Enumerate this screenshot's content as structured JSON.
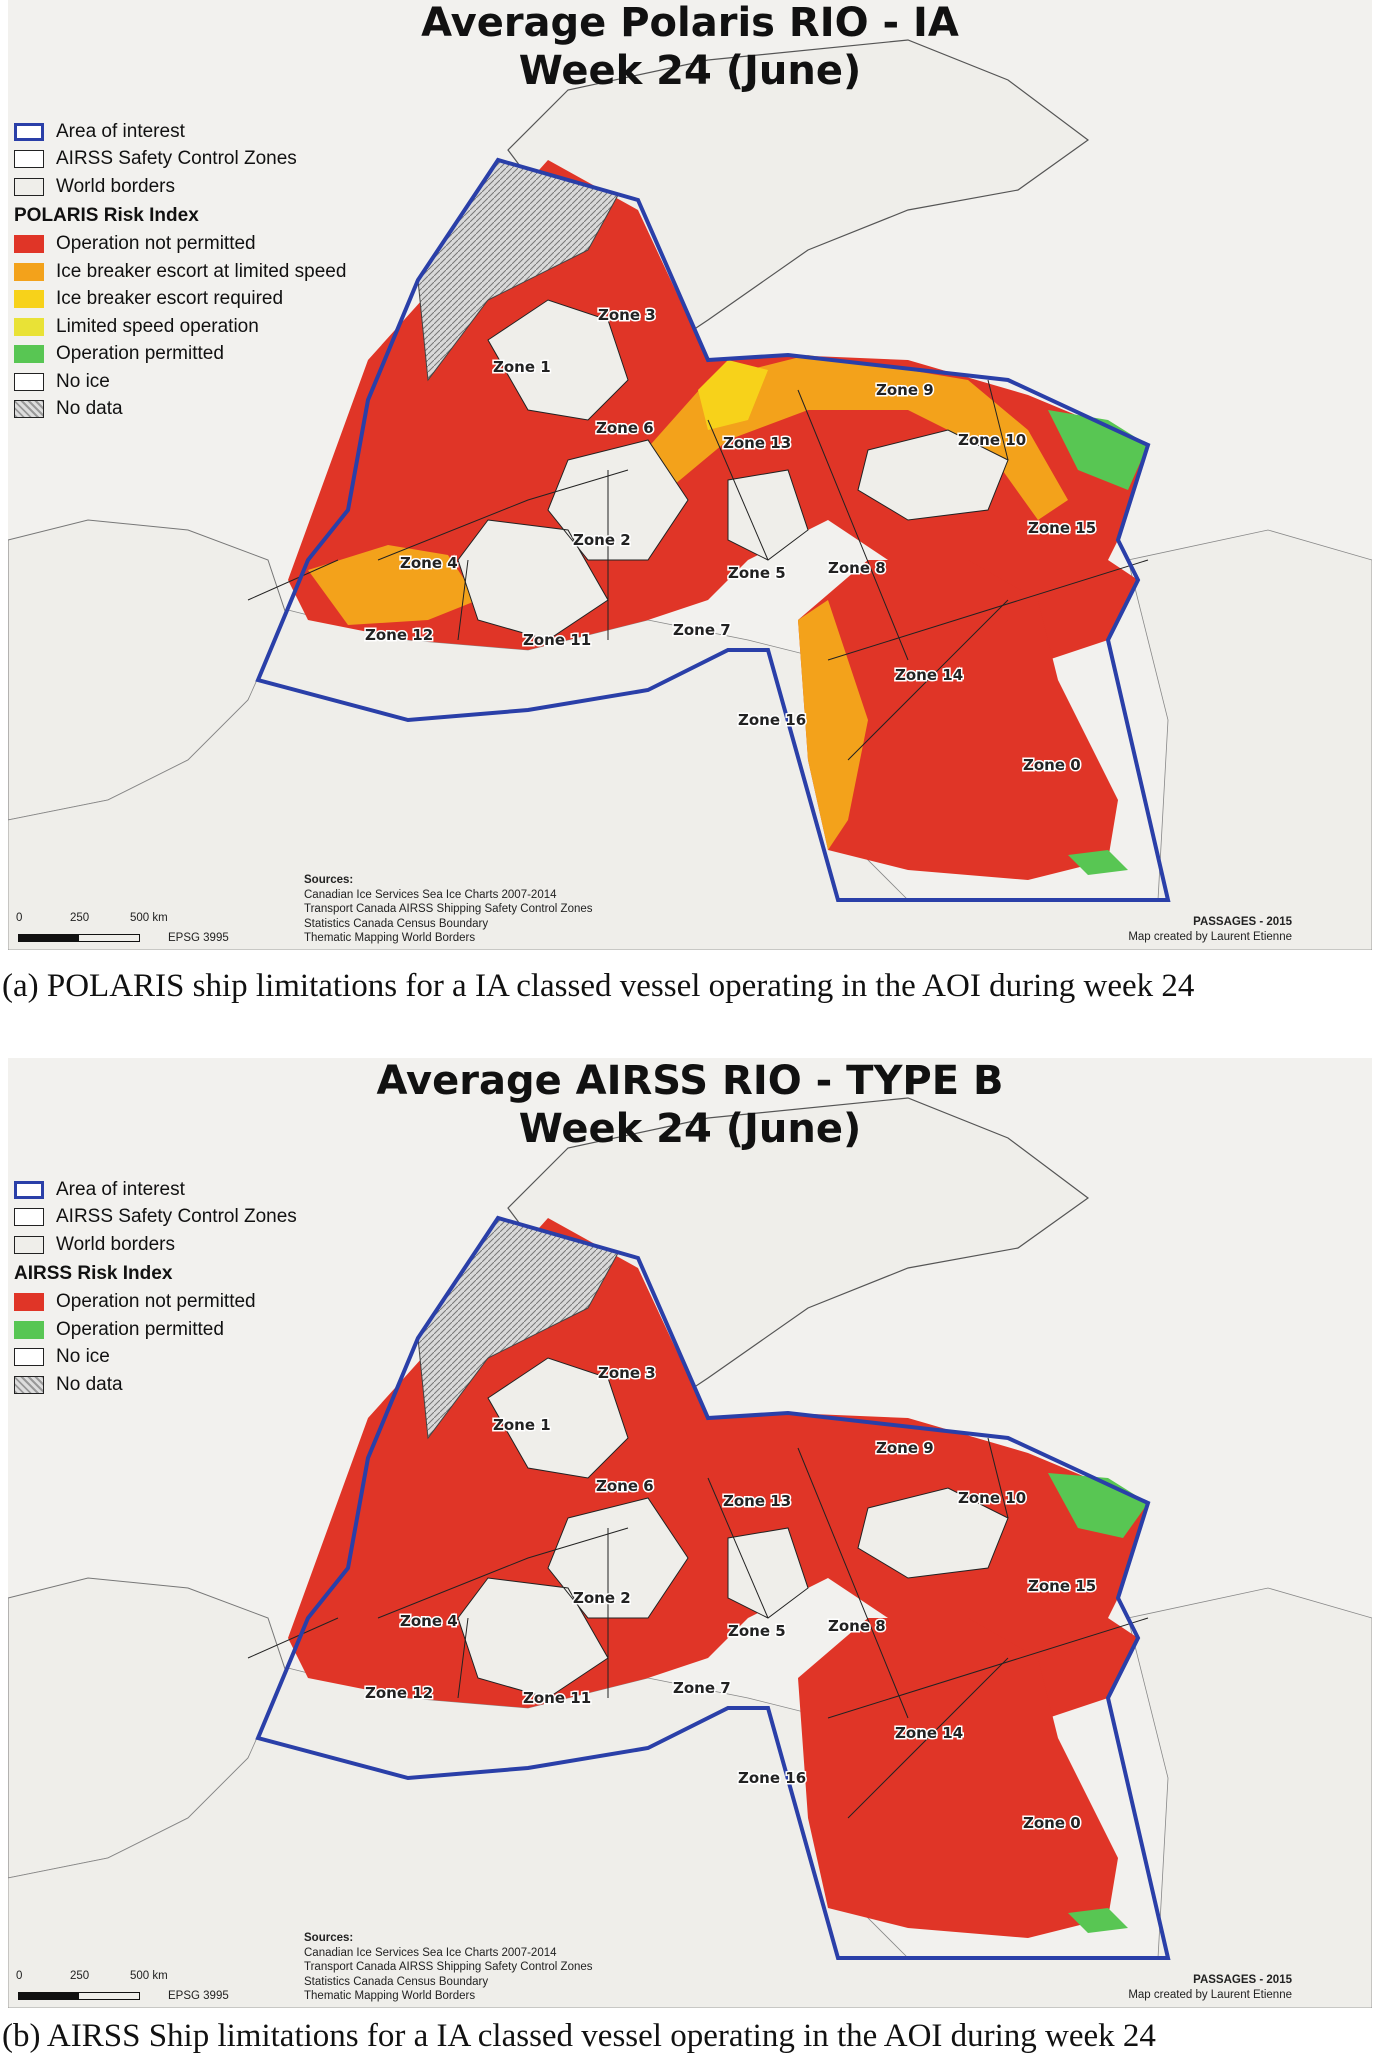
{
  "colors": {
    "aoi_border": "#2a3fa8",
    "not_permitted": "#e03527",
    "ie_limited_speed": "#f3a21b",
    "ie_required": "#f7d21a",
    "limited_speed": "#e9e236",
    "permitted": "#58c653",
    "no_ice": "#ffffff",
    "land": "#efeeea",
    "no_data": "#b8b8b8"
  },
  "zone_labels": [
    "Zone 0",
    "Zone 1",
    "Zone 2",
    "Zone 3",
    "Zone 4",
    "Zone 5",
    "Zone 6",
    "Zone 7",
    "Zone 8",
    "Zone 9",
    "Zone 10",
    "Zone 11",
    "Zone 12",
    "Zone 13",
    "Zone 14",
    "Zone 15",
    "Zone 16"
  ],
  "panels": [
    {
      "id": "a",
      "title_line1": "Average Polaris RIO - IA",
      "title_line2": "Week 24 (June)",
      "legend_common": [
        "Area of interest",
        "AIRSS Safety Control Zones",
        "World borders"
      ],
      "risk_index_title": "POLARIS Risk Index",
      "risk_items": [
        {
          "label": "Operation not permitted",
          "color_key": "not_permitted"
        },
        {
          "label": "Ice breaker escort at limited speed",
          "color_key": "ie_limited_speed"
        },
        {
          "label": "Ice breaker escort required",
          "color_key": "ie_required"
        },
        {
          "label": "Limited speed operation",
          "color_key": "limited_speed"
        },
        {
          "label": "Operation permitted",
          "color_key": "permitted"
        },
        {
          "label": "No ice",
          "color_key": "no_ice"
        },
        {
          "label": "No data",
          "color_key": "no_data"
        }
      ],
      "caption": "(a) POLARIS ship limitations for a IA classed vessel operating in the AOI during week 24"
    },
    {
      "id": "b",
      "title_line1": "Average AIRSS RIO - TYPE B",
      "title_line2": "Week 24 (June)",
      "legend_common": [
        "Area of interest",
        "AIRSS Safety Control Zones",
        "World borders"
      ],
      "risk_index_title": "AIRSS Risk Index",
      "risk_items": [
        {
          "label": "Operation not permitted",
          "color_key": "not_permitted"
        },
        {
          "label": "Operation permitted",
          "color_key": "permitted"
        },
        {
          "label": "No ice",
          "color_key": "no_ice"
        },
        {
          "label": "No data",
          "color_key": "no_data"
        }
      ],
      "caption": "(b) AIRSS Ship limitations for a IA classed vessel operating in the AOI during week 24"
    }
  ],
  "sources": {
    "heading": "Sources:",
    "lines": [
      "Canadian Ice Services Sea Ice Charts 2007-2014",
      "Transport Canada AIRSS Shipping Safety Control Zones",
      "Statistics Canada Census Boundary",
      "Thematic Mapping World Borders"
    ]
  },
  "credit": {
    "heading": "PASSAGES - 2015",
    "line": "Map created by Laurent Etienne"
  },
  "scale": {
    "ticks": [
      "0",
      "250",
      "500  km"
    ],
    "projection": "EPSG 3995"
  }
}
